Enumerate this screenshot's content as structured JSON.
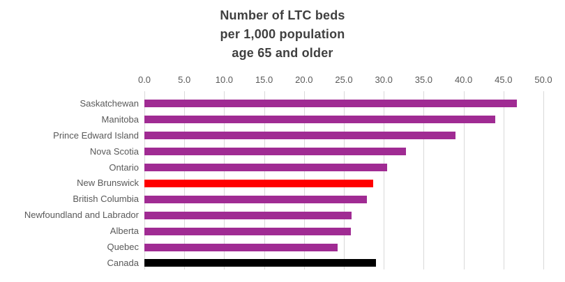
{
  "chart_data": {
    "type": "bar",
    "orientation": "horizontal",
    "title_lines": [
      "Number of LTC beds",
      "per 1,000 population",
      "age 65 and older"
    ],
    "categories": [
      "Saskatchewan",
      "Manitoba",
      "Prince Edward Island",
      "Nova Scotia",
      "Ontario",
      "New Brunswick",
      "British Columbia",
      "Newfoundland and Labrador",
      "Alberta",
      "Quebec",
      "Canada"
    ],
    "values": [
      46.7,
      44.0,
      39.0,
      32.8,
      30.4,
      28.7,
      27.9,
      26.0,
      25.9,
      24.2,
      29.0
    ],
    "bar_colors": [
      "#A02B93",
      "#A02B93",
      "#A02B93",
      "#A02B93",
      "#A02B93",
      "#FF0000",
      "#A02B93",
      "#A02B93",
      "#A02B93",
      "#A02B93",
      "#000000"
    ],
    "xlabel": "",
    "ylabel": "",
    "xlim": [
      0,
      50
    ],
    "x_tick_values": [
      0,
      5,
      10,
      15,
      20,
      25,
      30,
      35,
      40,
      45,
      50
    ],
    "x_tick_labels": [
      "0.0",
      "5.0",
      "10.0",
      "15.0",
      "20.0",
      "25.0",
      "30.0",
      "35.0",
      "40.0",
      "45.0",
      "50.0"
    ],
    "grid": "vertical-gridlines-on",
    "legend": "none",
    "colors": {
      "default_bar": "#A02B93",
      "new_brunswick_bar": "#FF0000",
      "canada_bar": "#000000",
      "gridline": "#d9d9d9",
      "tick_mark": "#bfbfbf",
      "axis_text": "#595959",
      "title_text": "#404040",
      "background": "#ffffff"
    }
  }
}
